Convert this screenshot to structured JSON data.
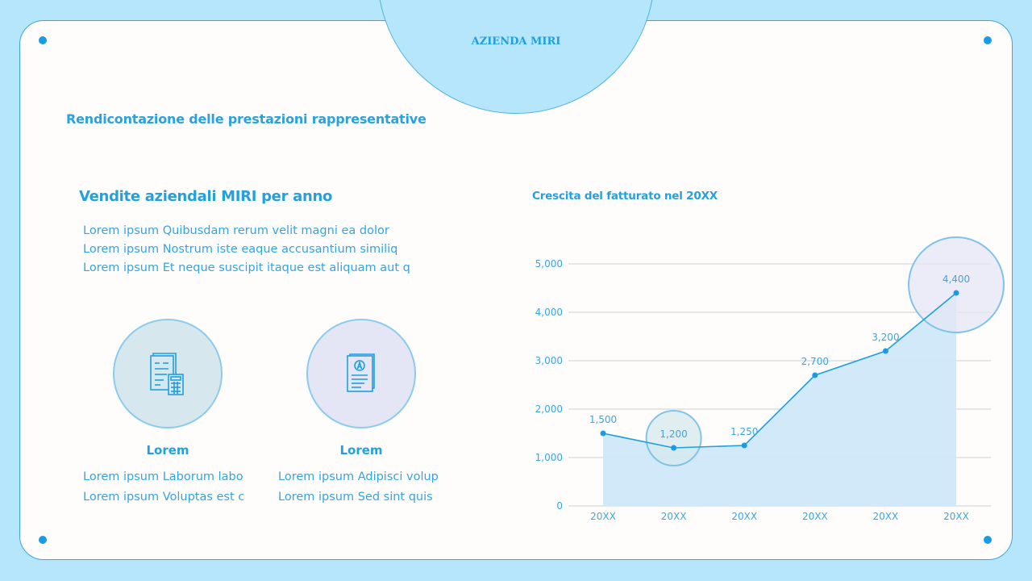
{
  "header": {
    "brand": "AZIENDA MIRI",
    "subtitle": "Rendicontazione delle prestazioni rappresentative"
  },
  "left_section": {
    "title": "Vendite aziendali MIRI per anno",
    "lines": [
      "Lorem ipsum Quibusdam rerum velit magni ea dolor",
      "Lorem ipsum Nostrum iste eaque accusantium similiq",
      "Lorem ipsum Et neque suscipit itaque est aliquam aut q"
    ],
    "features": [
      {
        "icon": "document-calculator-icon",
        "title": "Lorem",
        "lines": [
          "Lorem ipsum Laborum labo",
          "Lorem ipsum Voluptas est c"
        ]
      },
      {
        "icon": "graded-document-icon",
        "title": "Lorem",
        "lines": [
          "Lorem ipsum Adipisci volup",
          "Lorem ipsum Sed sint quis"
        ]
      }
    ]
  },
  "colors": {
    "background": "#b6e6fb",
    "card": "#fefdfc",
    "accent": "#1a9be6",
    "text": "#28a2e0",
    "area_fill": "#cfe8f8",
    "feature1_fill": "#d6e8ee",
    "feature2_fill": "#e4e6f6"
  },
  "chart_data": {
    "type": "area",
    "title": "Crescita del fatturato nel 20XX",
    "categories": [
      "20XX",
      "20XX",
      "20XX",
      "20XX",
      "20XX",
      "20XX"
    ],
    "values": [
      1500,
      1200,
      1250,
      2700,
      3200,
      4400
    ],
    "value_labels": [
      "1,500",
      "1,200",
      "1,250",
      "2,700",
      "3,200",
      "4,400"
    ],
    "y_ticks": [
      "0",
      "1,000",
      "2,000",
      "3,000",
      "4,000",
      "5,000"
    ],
    "ylim": [
      0,
      5000
    ],
    "xlabel": "",
    "ylabel": "",
    "grid": true,
    "legend": "none",
    "highlighted_points": [
      1,
      5
    ]
  }
}
